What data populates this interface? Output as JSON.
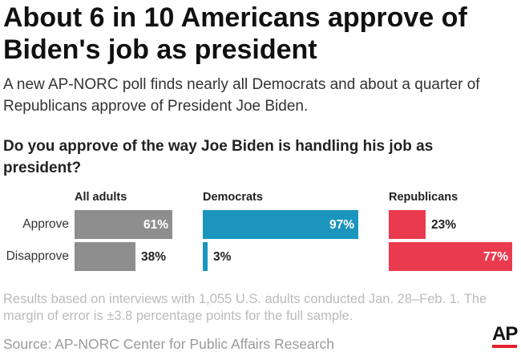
{
  "header": {
    "title": "About 6 in 10 Americans approve of Biden's job as president",
    "subtitle": "A new AP-NORC poll finds nearly all Democrats and about a quarter of Republicans approve of President Joe Biden.",
    "question": "Do you approve of the way Joe Biden is handling his job as president?"
  },
  "chart_data": {
    "type": "bar",
    "orientation": "horizontal",
    "categories": [
      "Approve",
      "Disapprove"
    ],
    "xlim": [
      0,
      100
    ],
    "series": [
      {
        "name": "All adults",
        "color": "#8e8e8e",
        "values": [
          61,
          38
        ],
        "value_labels": [
          "61%",
          "38%"
        ]
      },
      {
        "name": "Democrats",
        "color": "#1b95bd",
        "values": [
          97,
          3
        ],
        "value_labels": [
          "97%",
          "3%"
        ]
      },
      {
        "name": "Republicans",
        "color": "#ea3b4e",
        "values": [
          23,
          77
        ],
        "value_labels": [
          "23%",
          "77%"
        ]
      }
    ]
  },
  "footer": {
    "note": "Results based on interviews with 1,055 U.S. adults conducted Jan. 28–Feb. 1. The margin of error is ±3.8 percentage points for the full sample.",
    "source": "Source: AP-NORC Center for Public Affairs Research",
    "logo": "AP"
  }
}
